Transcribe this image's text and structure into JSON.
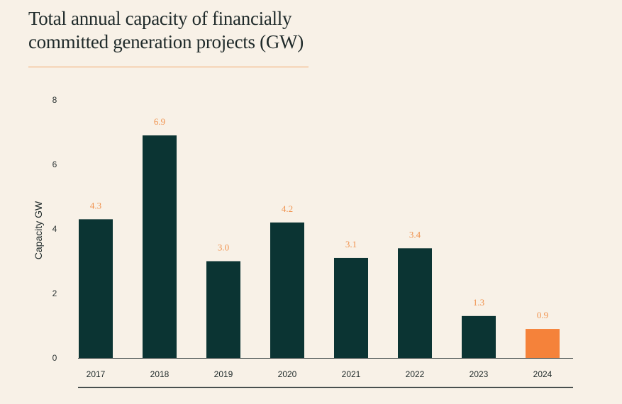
{
  "title": "Total annual capacity of financially committed generation projects (GW)",
  "colors": {
    "background": "#f8f1e7",
    "bar": "#0b3433",
    "highlight_bar": "#f5823a",
    "label": "#f0934f",
    "rule": "#f2a66a"
  },
  "chart_data": {
    "type": "bar",
    "title": "Total annual capacity of financially committed generation projects (GW)",
    "xlabel": "",
    "ylabel": "Capacity GW",
    "ylim": [
      0,
      8
    ],
    "yticks": [
      0,
      2,
      4,
      6,
      8
    ],
    "categories": [
      "2017",
      "2018",
      "2019",
      "2020",
      "2021",
      "2022",
      "2023",
      "2024"
    ],
    "values": [
      4.3,
      6.9,
      3.0,
      4.2,
      3.1,
      3.4,
      1.3,
      0.9
    ],
    "value_labels": [
      "4.3",
      "6.9",
      "3.0",
      "4.2",
      "3.1",
      "3.4",
      "1.3",
      "0.9"
    ],
    "highlight_category": "2024",
    "grid": false,
    "legend": "none"
  }
}
